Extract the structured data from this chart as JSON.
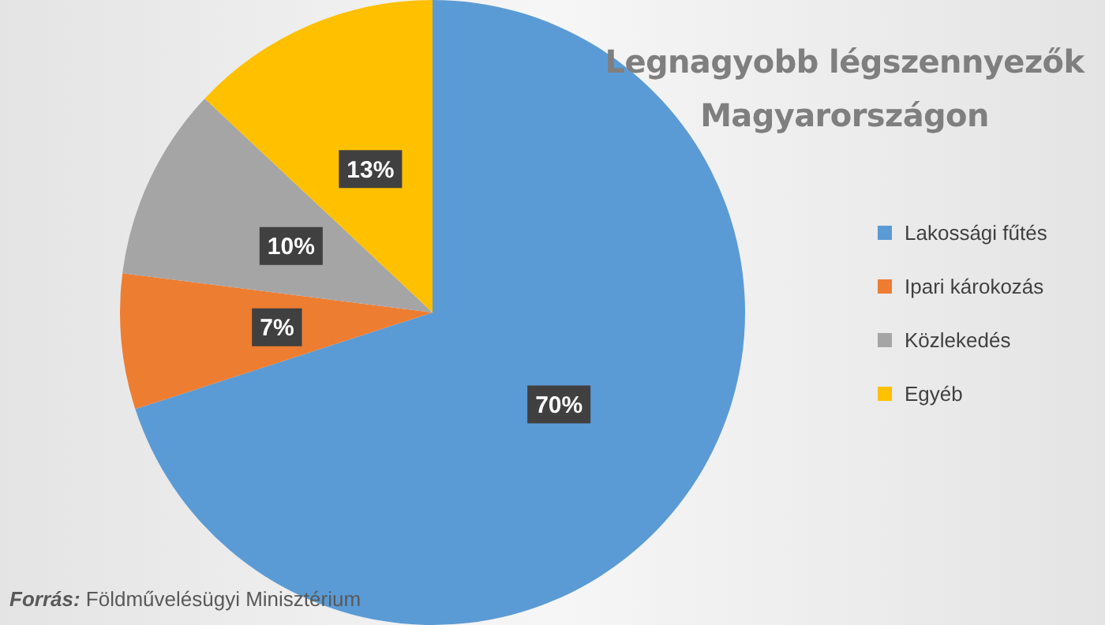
{
  "chart_data": {
    "type": "pie",
    "title": "Legnagyobb légszennyezők Magyarországon",
    "categories": [
      "Lakossági fűtés",
      "Ipari károkozás",
      "Közlekedés",
      "Egyéb"
    ],
    "values": [
      70,
      7,
      10,
      13
    ],
    "colors": [
      "#5b9bd5",
      "#ed7d31",
      "#a5a5a5",
      "#ffc000"
    ],
    "value_labels": [
      "70%",
      "7%",
      "10%",
      "13%"
    ],
    "legend": "right",
    "annotations": [
      "Forrás: Földművelésügyi Minisztérium"
    ]
  }
}
